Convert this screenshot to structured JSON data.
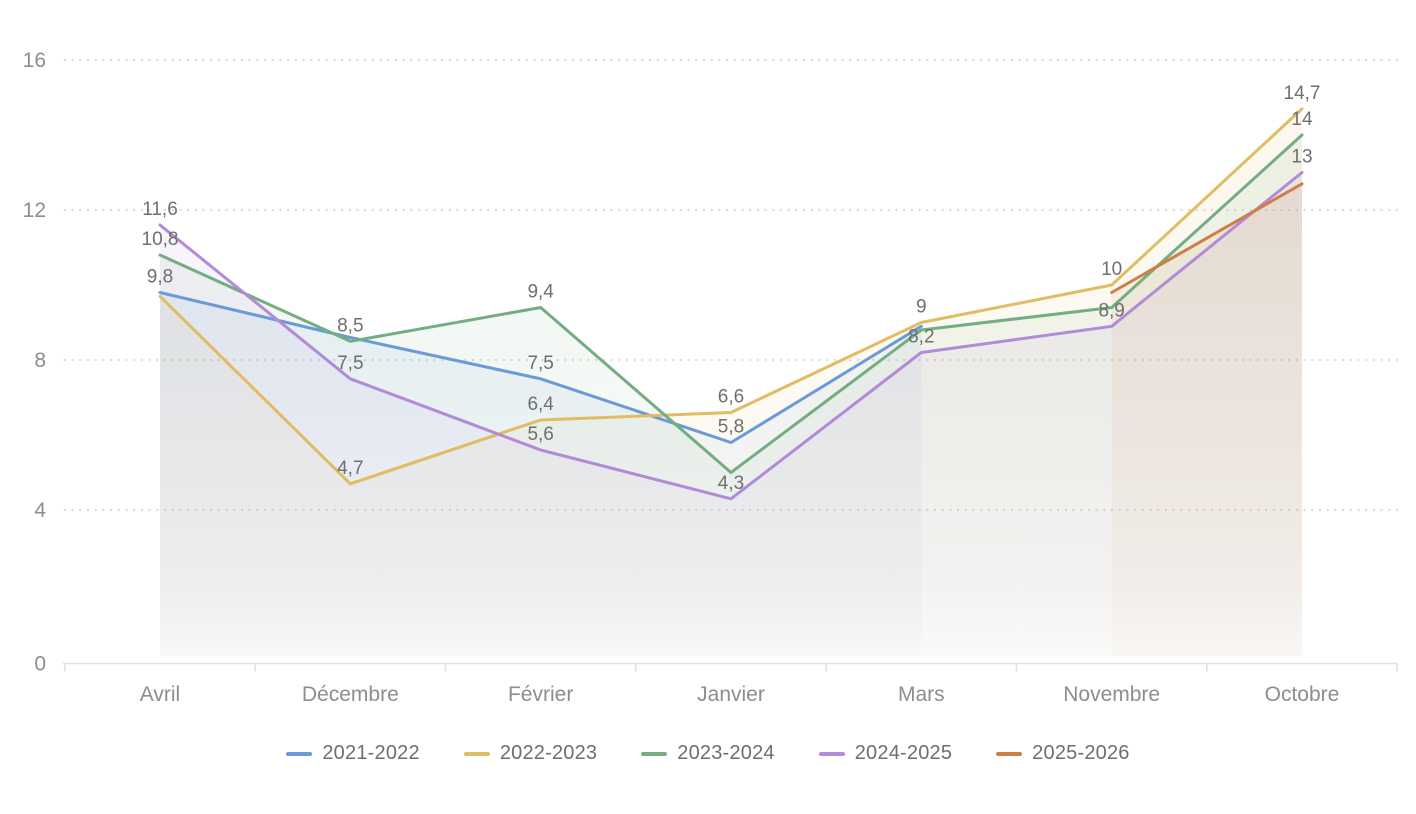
{
  "chart_data": {
    "type": "line",
    "title": "",
    "xlabel": "",
    "ylabel": "",
    "categories": [
      "Avril",
      "Décembre",
      "Février",
      "Janvier",
      "Mars",
      "Novembre",
      "Octobre"
    ],
    "series": [
      {
        "name": "2021-2022",
        "color": "#6b9ad9",
        "values": [
          9.8,
          8.6,
          7.5,
          5.8,
          8.9,
          null,
          null
        ],
        "point_labels": [
          "9,8",
          null,
          "7,5",
          "5,8",
          null,
          null,
          null
        ]
      },
      {
        "name": "2022-2023",
        "color": "#e0bc62",
        "values": [
          9.7,
          4.7,
          6.4,
          6.6,
          9,
          10,
          14.7
        ],
        "point_labels": [
          null,
          "4,7",
          "6,4",
          "6,6",
          "9",
          "10",
          "14,7"
        ]
      },
      {
        "name": "2023-2024",
        "color": "#74ad82",
        "values": [
          10.8,
          8.5,
          9.4,
          5,
          8.8,
          9.4,
          14
        ],
        "point_labels": [
          "10,8",
          "8,5",
          "9,4",
          null,
          null,
          null,
          "14"
        ]
      },
      {
        "name": "2024-2025",
        "color": "#b28ad8",
        "values": [
          11.6,
          7.5,
          5.6,
          4.3,
          8.2,
          8.9,
          13
        ],
        "point_labels": [
          "11,6",
          "7,5",
          "5,6",
          "4,3",
          "8,2",
          "8,9",
          "13"
        ]
      },
      {
        "name": "2025-2026",
        "color": "#cd7f47",
        "values": [
          null,
          null,
          null,
          null,
          null,
          9.8,
          12.7
        ],
        "point_labels": [
          null,
          null,
          null,
          null,
          null,
          null,
          null
        ]
      }
    ],
    "y_ticks": [
      0,
      4,
      8,
      12,
      16
    ],
    "y_tick_labels": [
      "0",
      "4",
      "8",
      "12",
      "16"
    ],
    "ylim": [
      0,
      16
    ],
    "grid": "horizontal-dotted",
    "area_fill": true,
    "legend_position": "bottom",
    "colors": {
      "grid": "#dcdcdc",
      "axis": "#e1e1e1",
      "tick_text": "#8d8d8d",
      "data_label_text": "#6f6f6f",
      "legend_text": "#6e6e6e",
      "background": "#ffffff"
    }
  }
}
